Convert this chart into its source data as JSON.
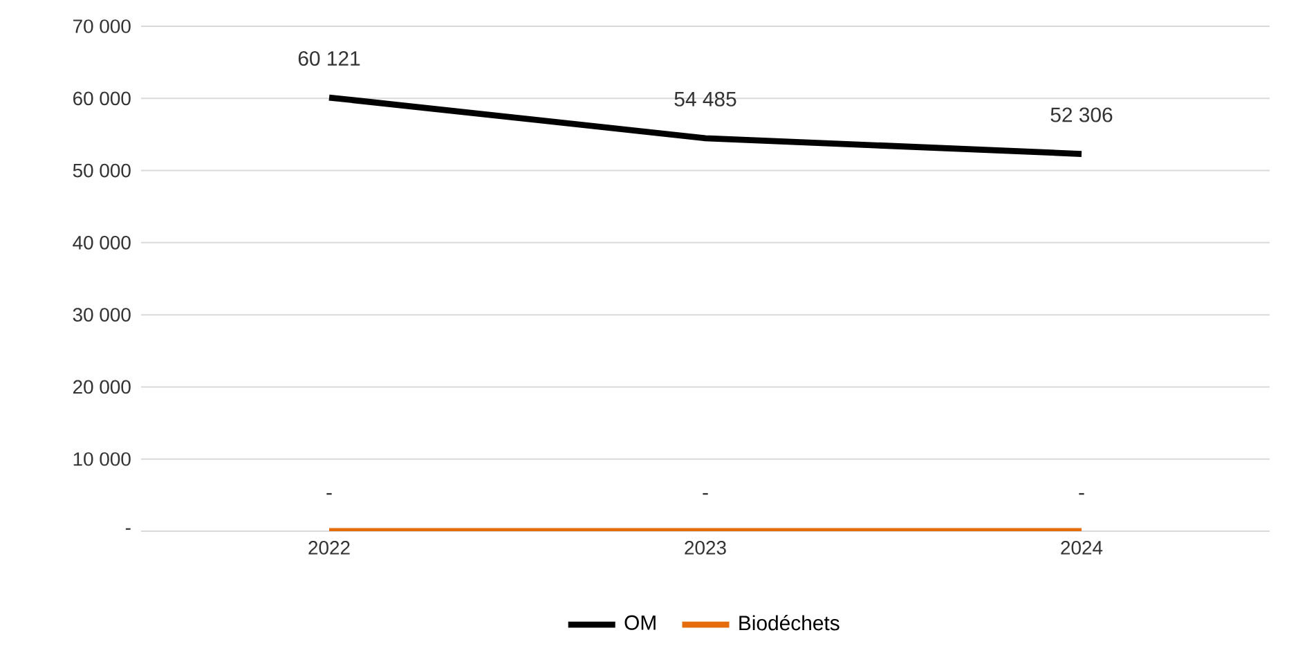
{
  "chart_data": {
    "type": "line",
    "categories": [
      "2022",
      "2023",
      "2024"
    ],
    "series": [
      {
        "name": "OM",
        "color": "#000000",
        "values": [
          60121,
          54485,
          52306
        ],
        "value_labels": [
          "60 121",
          "54 485",
          "52 306"
        ]
      },
      {
        "name": "Biodéchets",
        "color": "#e46c0a",
        "values": [
          0,
          0,
          0
        ],
        "value_labels": [
          "-",
          "-",
          "-"
        ]
      }
    ],
    "ylim": [
      0,
      70000
    ],
    "yticks": [
      {
        "value": 0,
        "label": "-"
      },
      {
        "value": 10000,
        "label": "10 000"
      },
      {
        "value": 20000,
        "label": "20 000"
      },
      {
        "value": 30000,
        "label": "30 000"
      },
      {
        "value": 40000,
        "label": "40 000"
      },
      {
        "value": 50000,
        "label": "50 000"
      },
      {
        "value": 60000,
        "label": "60 000"
      },
      {
        "value": 70000,
        "label": "70 000"
      }
    ],
    "grid": "y",
    "legend": "bottom",
    "marker": "none",
    "line_style": "solid"
  }
}
